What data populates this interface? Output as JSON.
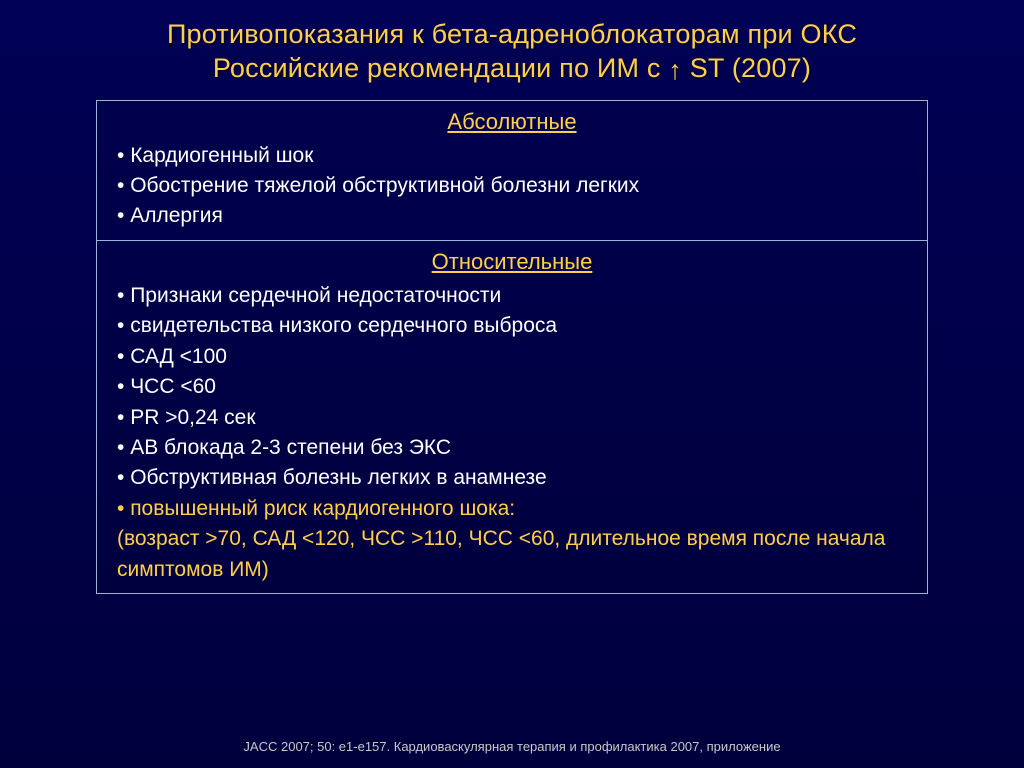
{
  "colors": {
    "background_top": "#000055",
    "background_bottom": "#00003d",
    "title_color": "#ffcf4a",
    "section_header_color": "#ffcf4a",
    "highlight_color": "#ffcf4a",
    "body_text_color": "#ffffff",
    "border_color": "#9ab3d6",
    "footnote_color": "#c8c8c8"
  },
  "title_line1": "Противопоказания к бета-адреноблокаторам при ОКС",
  "title_line2_prefix": "Российские рекомендации по ИМ с ",
  "title_line2_suffix": " ST (2007)",
  "arrow_glyph": "↑",
  "sections": {
    "absolute": {
      "header": "Абсолютные",
      "items": [
        "Кардиогенный шок",
        "Обострение тяжелой обструктивной болезни легких",
        "Аллергия"
      ]
    },
    "relative": {
      "header": "Относительные",
      "items": [
        "Признаки сердечной недостаточности",
        "свидетельства низкого сердечного выброса",
        "САД <100",
        "ЧСС <60",
        "PR >0,24 сек",
        "АВ блокада 2-3 степени без ЭКС",
        "Обструктивная болезнь легких в анамнезе"
      ],
      "highlight_item": "повышенный риск кардиогенного шока:",
      "highlight_detail": "(возраст >70, САД <120, ЧСС >110, ЧСС <60, длительное время после начала симптомов ИМ)"
    }
  },
  "footnote": "JACC 2007; 50: e1-e157. Кардиоваскулярная терапия и профилактика 2007, приложение"
}
